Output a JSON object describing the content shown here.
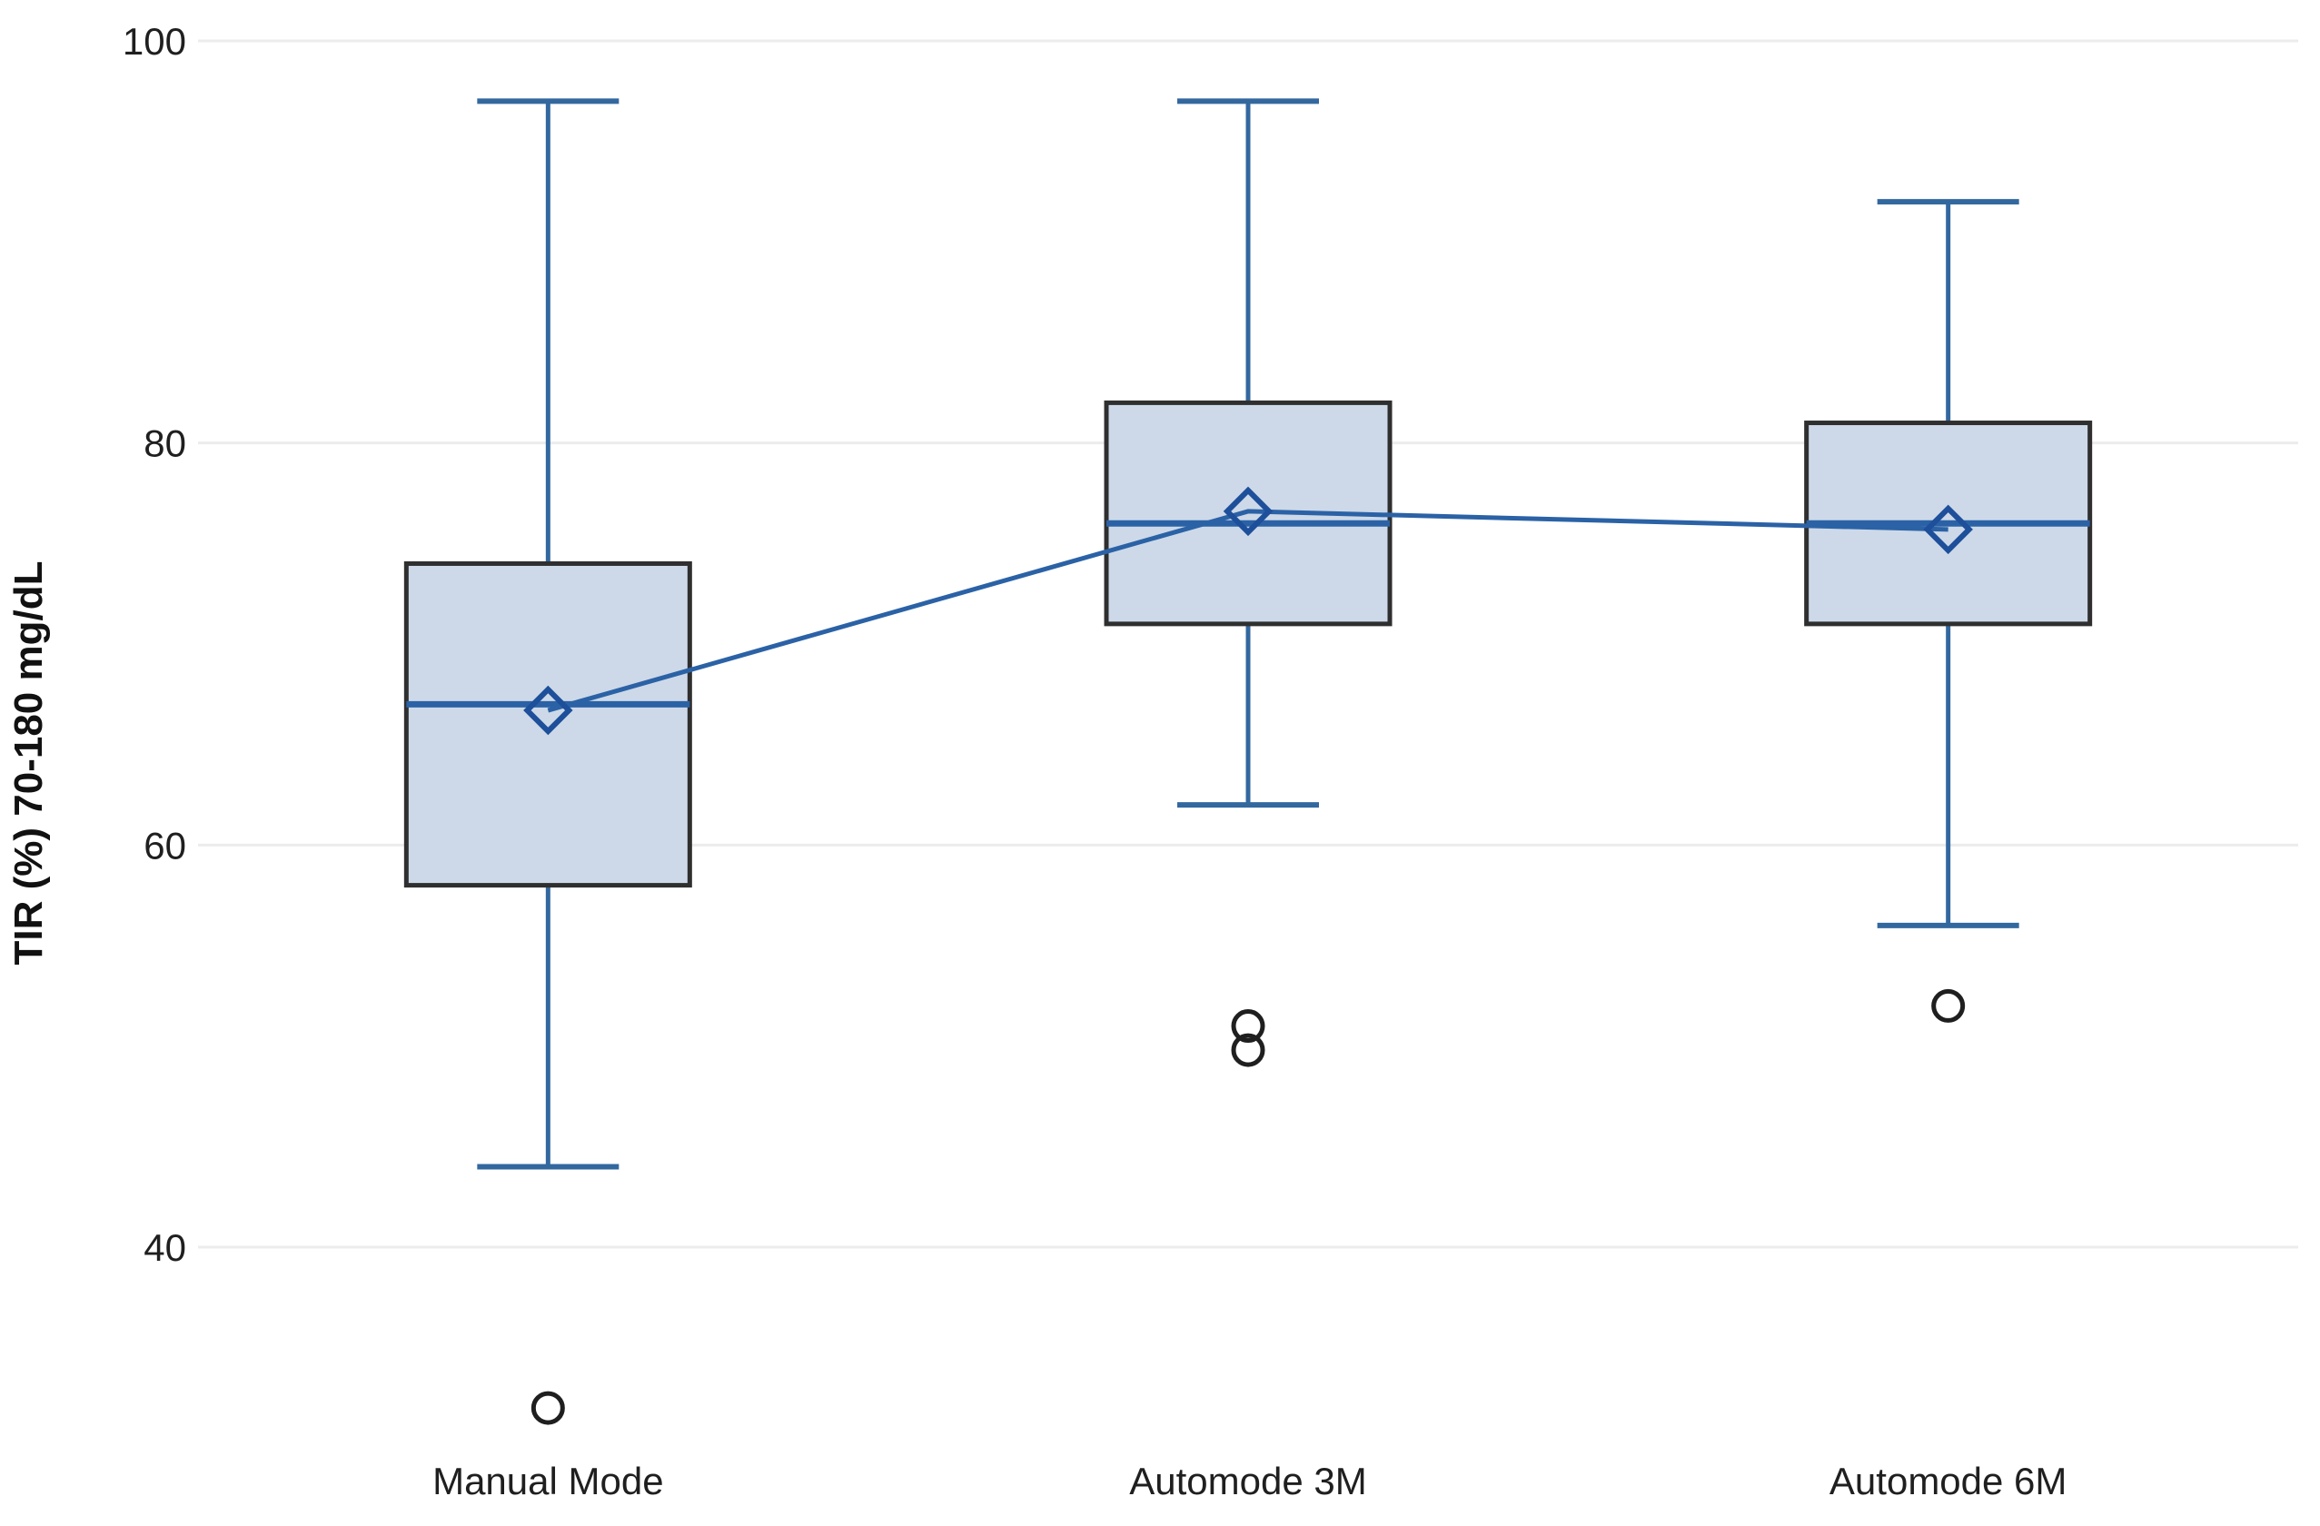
{
  "page": {
    "background": "#ffffff"
  },
  "chart_data": {
    "type": "box",
    "title": "",
    "xlabel": "",
    "ylabel": "TIR (%) 70-180 mg/dL",
    "categories": [
      "Manual Mode",
      "Automode 3M",
      "Automode 6M"
    ],
    "yticks": [
      100,
      80,
      60,
      40
    ],
    "ylim": [
      26,
      102
    ],
    "grid": "horizontal",
    "legend": "none",
    "mean_connector": true,
    "boxes": [
      {
        "category": "Manual Mode",
        "whisker_low": 44,
        "q1": 58,
        "median": 67,
        "q3": 74,
        "whisker_high": 97,
        "mean": 66.7,
        "outliers": [
          32
        ]
      },
      {
        "category": "Automode 3M",
        "whisker_low": 62,
        "q1": 71,
        "median": 76,
        "q3": 82,
        "whisker_high": 97,
        "mean": 76.6,
        "outliers": [
          51,
          49.8
        ]
      },
      {
        "category": "Automode 6M",
        "whisker_low": 56,
        "q1": 71,
        "median": 76,
        "q3": 81,
        "whisker_high": 92,
        "mean": 75.7,
        "outliers": [
          52
        ]
      }
    ],
    "colors": {
      "background": "#ffffff",
      "box_fill": "#cdd9e8",
      "box_stroke": "#2f2f2f",
      "whisker": "#33689f",
      "median": "#2b62a6",
      "mean_connector": "#2b62a6",
      "mean_diamond": "#1d4f9a",
      "outlier": "#1f1f1f",
      "grid": "#ececec",
      "text": "#1f1f1f"
    }
  }
}
